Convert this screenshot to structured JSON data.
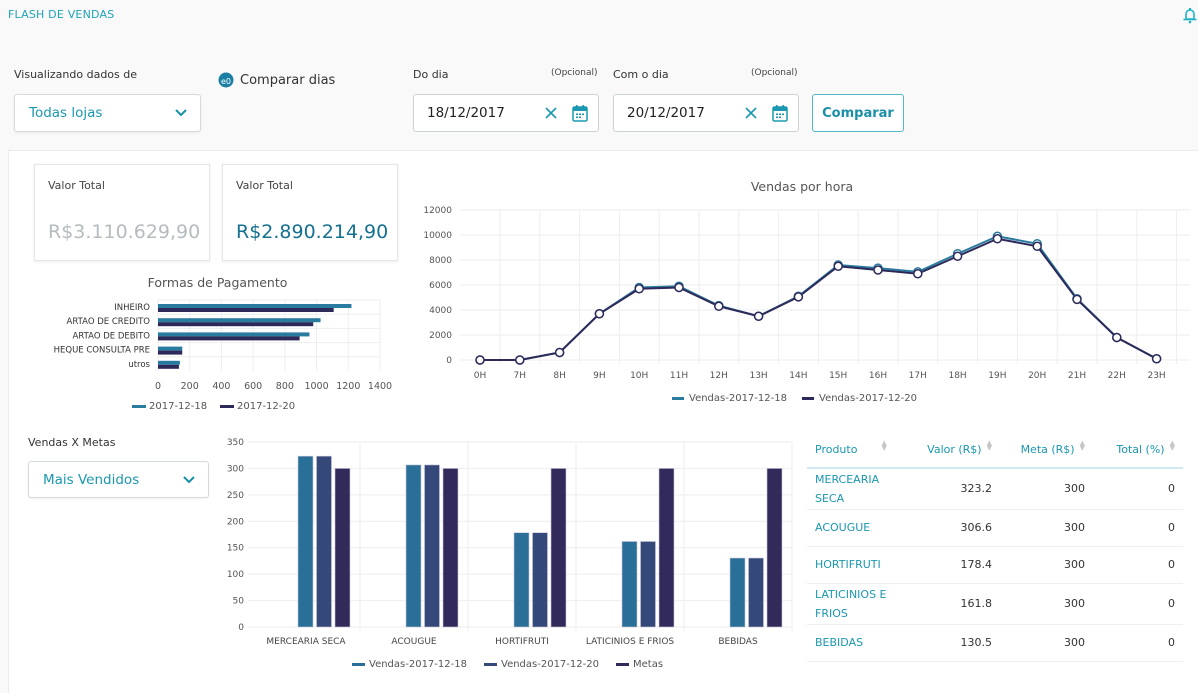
{
  "app": {
    "title": "FLASH DE VENDAS",
    "notification_icon": "bell-icon"
  },
  "filters": {
    "store_label": "Visualizando dados de",
    "store_value": "Todas lojas",
    "compare_days_label": "Comparar dias",
    "compare_days_icon": "compare-icon",
    "from_label": "Do dia",
    "from_optional": "(Opcional)",
    "from_value": "18/12/2017",
    "to_label": "Com o dia",
    "to_optional": "(Opcional)",
    "to_value": "20/12/2017",
    "compare_button": "Comparar"
  },
  "totals": [
    {
      "label": "Valor Total",
      "value": "R$3.110.629,90",
      "color": "#b5bcbf"
    },
    {
      "label": "Valor Total",
      "value": "R$2.890.214,90",
      "color": "#14718f"
    }
  ],
  "vendas_metas": {
    "label": "Vendas X Metas",
    "select_value": "Mais Vendidos"
  },
  "table": {
    "headers": [
      "Produto",
      "Valor (R$)",
      "Meta (R$)",
      "Total (%)"
    ],
    "rows": [
      {
        "produto": "MERCEARIA SECA",
        "valor": "323.2",
        "meta": "300",
        "total": "0"
      },
      {
        "produto": "ACOUGUE",
        "valor": "306.6",
        "meta": "300",
        "total": "0"
      },
      {
        "produto": "HORTIFRUTI",
        "valor": "178.4",
        "meta": "300",
        "total": "0"
      },
      {
        "produto": "LATICINIOS E FRIOS",
        "valor": "161.8",
        "meta": "300",
        "total": "0"
      },
      {
        "produto": "BEBIDAS",
        "valor": "130.5",
        "meta": "300",
        "total": "0"
      }
    ]
  },
  "colors": {
    "accent": "#1a98b0",
    "series_a": "#2a6f97",
    "series_b": "#34497a",
    "series_c": "#322a5a",
    "line_a": "#2a7ba0",
    "line_b": "#2d2a5a"
  },
  "chart_data": [
    {
      "id": "payments",
      "type": "bar",
      "orientation": "horizontal",
      "title": "Formas de Pagamento",
      "categories": [
        "INHEIRO",
        "ARTAO DE CREDITO",
        "ARTAO DE DEBITO",
        "HEQUE CONSULTA PRE",
        "utros"
      ],
      "series": [
        {
          "name": "2017-12-18",
          "values": [
            1220,
            1025,
            955,
            153,
            138
          ]
        },
        {
          "name": "2017-12-20",
          "values": [
            1108,
            979,
            893,
            153,
            132
          ]
        }
      ],
      "xlim": [
        0,
        1400
      ],
      "xticks": [
        "0",
        "200",
        "400",
        "600",
        "800",
        "1000",
        "1200",
        "1400"
      ],
      "grid": true,
      "legend": "bottom"
    },
    {
      "id": "hourly",
      "type": "line",
      "title": "Vendas por hora",
      "x": [
        "0H",
        "7H",
        "8H",
        "9H",
        "10H",
        "11H",
        "12H",
        "13H",
        "14H",
        "15H",
        "16H",
        "17H",
        "18H",
        "19H",
        "20H",
        "21H",
        "22H",
        "23H"
      ],
      "series": [
        {
          "name": "Vendas-2017-12-18",
          "values": [
            0,
            0,
            600,
            3700,
            5800,
            5900,
            4350,
            3500,
            5100,
            7600,
            7350,
            7050,
            8500,
            9900,
            9300,
            4900,
            1800,
            100
          ]
        },
        {
          "name": "Vendas-2017-12-20",
          "values": [
            0,
            0,
            600,
            3700,
            5700,
            5800,
            4300,
            3500,
            5050,
            7500,
            7200,
            6900,
            8300,
            9700,
            9100,
            4850,
            1800,
            100
          ]
        }
      ],
      "ylim": [
        0,
        12000
      ],
      "yticks": [
        "0",
        "2000",
        "4000",
        "6000",
        "8000",
        "10000",
        "12000"
      ],
      "grid": true,
      "legend": "bottom"
    },
    {
      "id": "metas",
      "type": "bar",
      "orientation": "vertical",
      "title": "",
      "categories": [
        "MERCEARIA SECA",
        "ACOUGUE",
        "HORTIFRUTI",
        "LATICINIOS E FRIOS",
        "BEBIDAS"
      ],
      "series": [
        {
          "name": "Vendas-2017-12-18",
          "values": [
            323.2,
            306.6,
            178.4,
            161.8,
            130.5
          ]
        },
        {
          "name": "Vendas-2017-12-20",
          "values": [
            323.2,
            306.6,
            178.4,
            161.8,
            130.5
          ]
        },
        {
          "name": "Metas",
          "values": [
            300,
            300,
            300,
            300,
            300
          ]
        }
      ],
      "ylim": [
        0,
        350
      ],
      "yticks": [
        "0",
        "50",
        "100",
        "150",
        "200",
        "250",
        "300",
        "350"
      ],
      "grid": true,
      "legend": "bottom"
    }
  ]
}
